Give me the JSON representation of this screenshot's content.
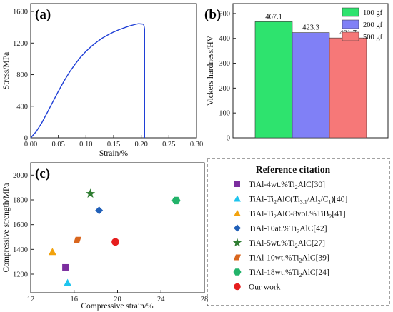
{
  "panel_a": {
    "label": "(a)",
    "chart_data": {
      "type": "line",
      "xlabel": "Strain/%",
      "ylabel": "Stress/MPa",
      "xlim": [
        0,
        0.3
      ],
      "ylim": [
        0,
        1700
      ],
      "x_ticks": [
        "0.00",
        "0.05",
        "0.10",
        "0.15",
        "0.20",
        "0.25",
        "0.30"
      ],
      "y_ticks": [
        "0",
        "400",
        "800",
        "1200",
        "1600"
      ],
      "color": "#1f3fd6",
      "series": [
        {
          "x": [
            0,
            0.01,
            0.02,
            0.03,
            0.04,
            0.05,
            0.06,
            0.07,
            0.08,
            0.09,
            0.1,
            0.11,
            0.12,
            0.13,
            0.14,
            0.15,
            0.16,
            0.17,
            0.18,
            0.19,
            0.195,
            0.2,
            0.204,
            0.205,
            0.206,
            0.206
          ],
          "y": [
            0,
            80,
            190,
            320,
            455,
            590,
            715,
            830,
            930,
            1020,
            1095,
            1160,
            1215,
            1265,
            1305,
            1340,
            1370,
            1395,
            1420,
            1438,
            1445,
            1442,
            1440,
            1420,
            1380,
            0
          ]
        }
      ]
    }
  },
  "panel_b": {
    "label": "(b)",
    "chart_data": {
      "type": "bar",
      "ylabel": "Vickers hardness/HV",
      "ylim": [
        0,
        540
      ],
      "y_ticks": [
        "0",
        "100",
        "200",
        "300",
        "400",
        "500"
      ],
      "categories": [
        "100 gf",
        "200 gf",
        "500 gf"
      ],
      "values": [
        467.1,
        423.3,
        401.7
      ],
      "value_labels": [
        "467.1",
        "423.3",
        "401.7"
      ],
      "colors": [
        "#2ee36e",
        "#8080f6",
        "#f67878"
      ],
      "legend": "top-right"
    }
  },
  "panel_c": {
    "label": "(c)",
    "chart_data": {
      "type": "scatter",
      "xlabel": "Compressive strain/%",
      "ylabel": "Compressive strength/MPa",
      "xlim": [
        12,
        28
      ],
      "ylim": [
        1050,
        2100
      ],
      "x_ticks": [
        "12",
        "16",
        "20",
        "24",
        "28"
      ],
      "y_ticks": [
        "1200",
        "1400",
        "1600",
        "1800",
        "2000"
      ],
      "legend_title": "Reference citation",
      "series": [
        {
          "name_parts": [
            "TiAl-4wt.%Ti",
            "2",
            "AlC[30]"
          ],
          "marker": "square",
          "color": "#7b2d9e",
          "x": 15.2,
          "y": 1255
        },
        {
          "name_parts": [
            "TiAl-Ti",
            "2",
            "AlC(Ti",
            "3.1",
            "/Al",
            "2",
            "/C",
            "1",
            ")[40]"
          ],
          "marker": "triangle",
          "color": "#1ec4ee",
          "x": 15.4,
          "y": 1130
        },
        {
          "name_parts": [
            "TiAl-Ti",
            "2",
            "AlC-8vol.%TiB",
            "2",
            "[41]"
          ],
          "marker": "triangle",
          "color": "#f2a20d",
          "x": 14.0,
          "y": 1380
        },
        {
          "name_parts": [
            "TiAl-10at.%Ti",
            "2",
            "AlC[42]"
          ],
          "marker": "diamond",
          "color": "#2160b8",
          "x": 18.3,
          "y": 1715
        },
        {
          "name_parts": [
            "TiAl-5wt.%Ti",
            "2",
            "AlC[27]"
          ],
          "marker": "star",
          "color": "#2f7d32",
          "x": 17.5,
          "y": 1850
        },
        {
          "name_parts": [
            "TiAl-10wt.%Ti",
            "2",
            "AlC[39]"
          ],
          "marker": "parallelogram",
          "color": "#d9661e",
          "x": 16.3,
          "y": 1475
        },
        {
          "name_parts": [
            "TiAl-18wt.%Ti",
            "2",
            "AlC[24]"
          ],
          "marker": "hexagon",
          "color": "#22b36a",
          "x": 25.4,
          "y": 1795
        },
        {
          "name_parts": [
            "Our work"
          ],
          "marker": "circle",
          "color": "#e61e1e",
          "x": 19.8,
          "y": 1460
        }
      ]
    }
  }
}
